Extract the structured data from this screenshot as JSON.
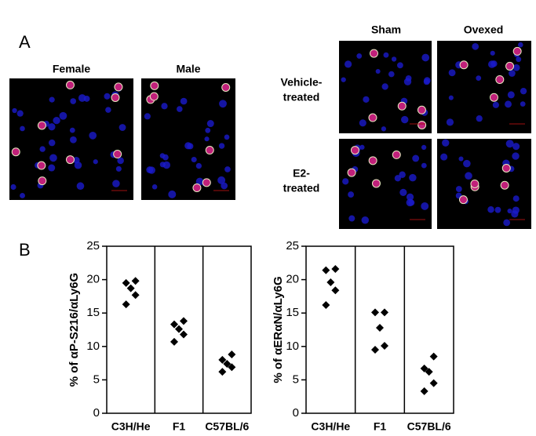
{
  "panel_a": {
    "label": "A",
    "left_labels": [
      "Female",
      "Male"
    ],
    "column_labels": [
      "Sham",
      "Ovexed"
    ],
    "row_labels": [
      [
        "Vehicle-",
        "treated"
      ],
      [
        "E2-",
        "treated"
      ]
    ]
  },
  "panel_b": {
    "label": "B"
  },
  "chart_data": [
    {
      "type": "strip",
      "y_label": "% of αP-S216/αLy6G",
      "categories": [
        "C3H/He",
        "F1",
        "C57BL/6"
      ],
      "values": [
        [
          19.8,
          19.5,
          18.7,
          17.7,
          16.3
        ],
        [
          13.8,
          13.3,
          12.6,
          11.8,
          10.7
        ],
        [
          8.8,
          8.0,
          7.4,
          6.9,
          6.2
        ]
      ],
      "color": "#000000",
      "ylim": [
        0,
        25
      ],
      "yticks": [
        0,
        5,
        10,
        15,
        20,
        25
      ]
    },
    {
      "type": "strip",
      "y_label": "% of αERαN/αLy6G",
      "categories": [
        "C3H/He",
        "F1",
        "C57BL/6"
      ],
      "values": [
        [
          21.6,
          21.4,
          19.6,
          18.4,
          16.2
        ],
        [
          15.1,
          15.1,
          12.8,
          10.1,
          9.5
        ],
        [
          8.5,
          6.7,
          6.2,
          4.5,
          3.3
        ]
      ],
      "color": "#000000",
      "ylim": [
        0,
        25
      ],
      "yticks": [
        0,
        5,
        10,
        15,
        20,
        25
      ]
    }
  ]
}
